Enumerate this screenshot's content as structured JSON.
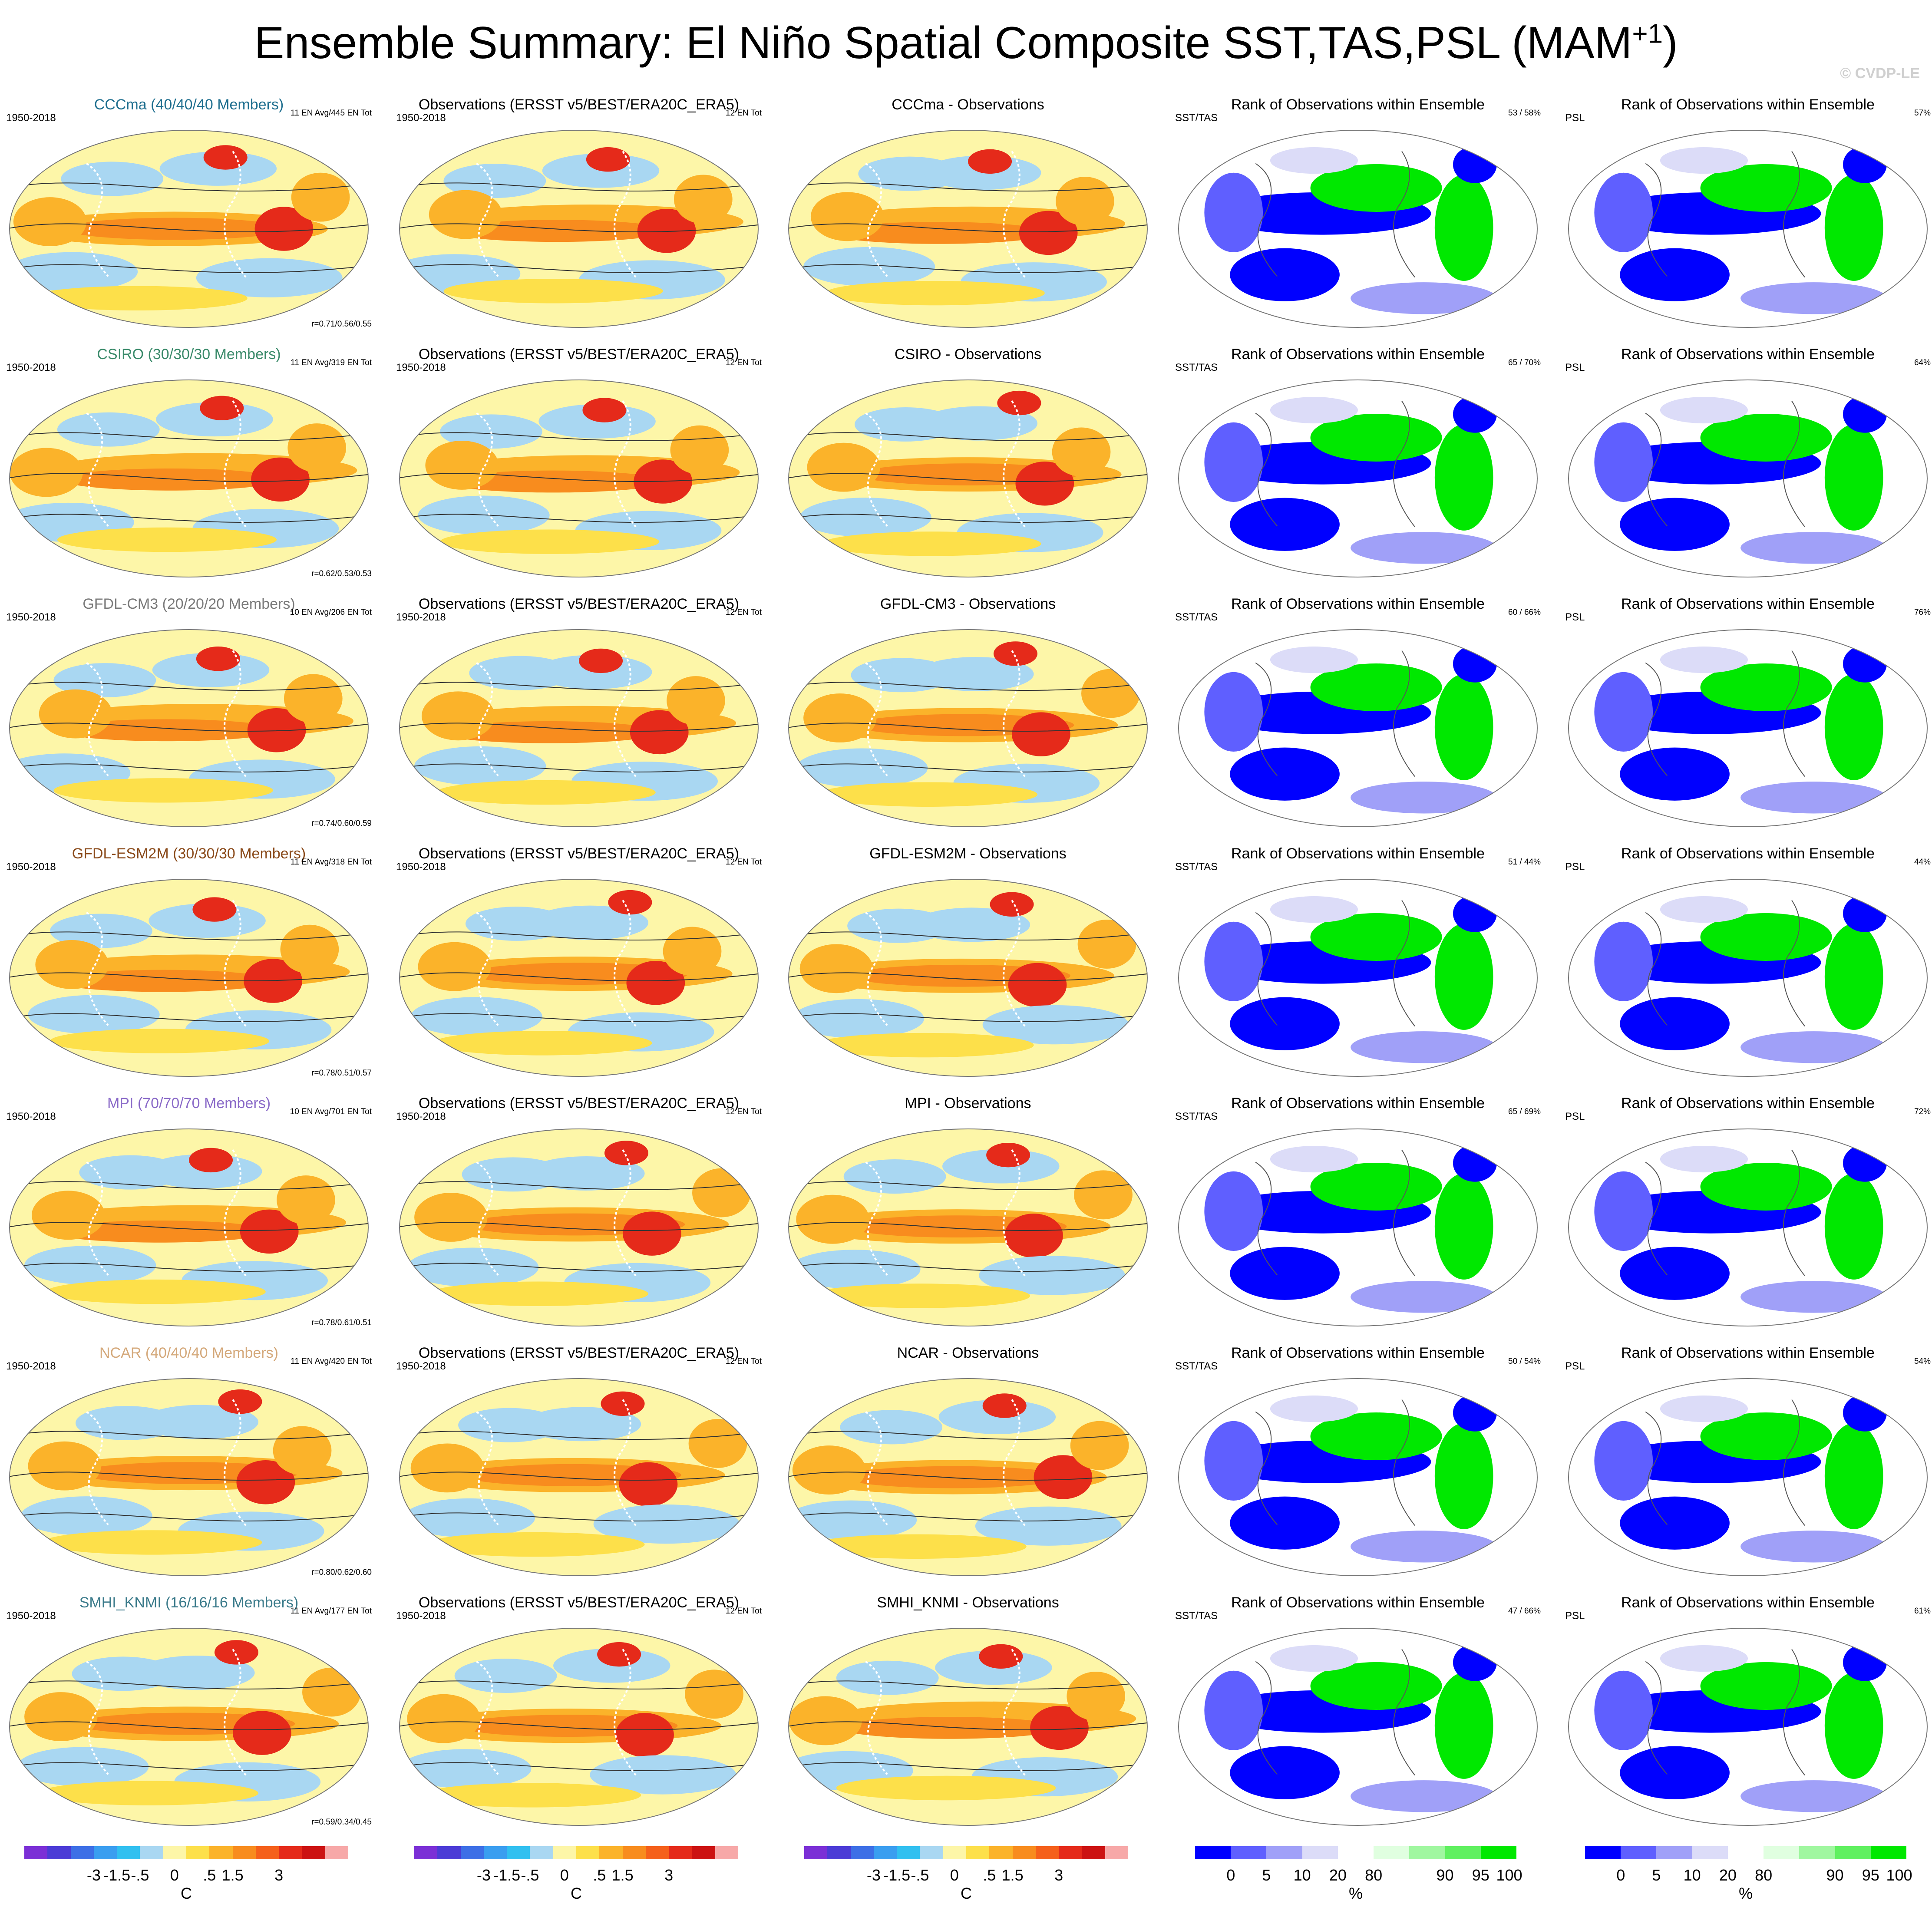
{
  "title": "Ensemble Summary: El Niño Spatial Composite SST,TAS,PSL (MAM",
  "title_superscript": "+1",
  "watermark": "© CVDP-LE",
  "colors": {
    "model_titles": [
      "#1f6f8f",
      "#3a8a6a",
      "#7a7a7a",
      "#8a4a1a",
      "#8a6ac8",
      "#d4a87a",
      "#3a7a8a"
    ],
    "temp_scale": [
      "#7b2fd6",
      "#4b3bd6",
      "#3d6fe6",
      "#3a9ef0",
      "#31c0f0",
      "#a9d7f2",
      "#fdf6a8",
      "#fde04a",
      "#fbb32a",
      "#f88c1e",
      "#f5601b",
      "#e52a1a",
      "#cc1212",
      "#f7a8a8"
    ],
    "rank_scale": [
      "#0000ff",
      "#5f5fff",
      "#a0a0f8",
      "#dcdcf8",
      "#ffffff",
      "#e0ffe0",
      "#a0f7a0",
      "#60f060",
      "#00e800"
    ]
  },
  "rows": [
    {
      "model_title": "CCCma (40/40/40 Members)",
      "years": "1950-2018",
      "model_extra": "11 EN Avg/445 EN Tot",
      "corr": "r=0.71/0.56/0.55",
      "obs_title": "Observations (ERSST v5/BEST/ERA20C_ERA5)",
      "obs_years": "1950-2018",
      "obs_extra": "12 EN Tot",
      "diff_title": "CCCma - Observations",
      "rank_title": "Rank of Observations within Ensemble",
      "rank_label_sst": "SST/TAS",
      "rank_pct_sst": "53 /  58%",
      "rank_label_psl": "PSL",
      "rank_pct_psl": "57%"
    },
    {
      "model_title": "CSIRO (30/30/30 Members)",
      "years": "1950-2018",
      "model_extra": "11 EN Avg/319 EN Tot",
      "corr": "r=0.62/0.53/0.53",
      "obs_title": "Observations (ERSST v5/BEST/ERA20C_ERA5)",
      "obs_years": "1950-2018",
      "obs_extra": "12 EN Tot",
      "diff_title": "CSIRO - Observations",
      "rank_title": "Rank of Observations within Ensemble",
      "rank_label_sst": "SST/TAS",
      "rank_pct_sst": "65 /  70%",
      "rank_label_psl": "PSL",
      "rank_pct_psl": "64%"
    },
    {
      "model_title": "GFDL-CM3 (20/20/20 Members)",
      "years": "1950-2018",
      "model_extra": "10 EN Avg/206 EN Tot",
      "corr": "r=0.74/0.60/0.59",
      "obs_title": "Observations (ERSST v5/BEST/ERA20C_ERA5)",
      "obs_years": "1950-2018",
      "obs_extra": "12 EN Tot",
      "diff_title": "GFDL-CM3 - Observations",
      "rank_title": "Rank of Observations within Ensemble",
      "rank_label_sst": "SST/TAS",
      "rank_pct_sst": "60 /  66%",
      "rank_label_psl": "PSL",
      "rank_pct_psl": "76%"
    },
    {
      "model_title": "GFDL-ESM2M (30/30/30 Members)",
      "years": "1950-2018",
      "model_extra": "11 EN Avg/318 EN Tot",
      "corr": "r=0.78/0.51/0.57",
      "obs_title": "Observations (ERSST v5/BEST/ERA20C_ERA5)",
      "obs_years": "1950-2018",
      "obs_extra": "12 EN Tot",
      "diff_title": "GFDL-ESM2M - Observations",
      "rank_title": "Rank of Observations within Ensemble",
      "rank_label_sst": "SST/TAS",
      "rank_pct_sst": "51 /  44%",
      "rank_label_psl": "PSL",
      "rank_pct_psl": "44%"
    },
    {
      "model_title": "MPI (70/70/70 Members)",
      "years": "1950-2018",
      "model_extra": "10 EN Avg/701 EN Tot",
      "corr": "r=0.78/0.61/0.51",
      "obs_title": "Observations (ERSST v5/BEST/ERA20C_ERA5)",
      "obs_years": "1950-2018",
      "obs_extra": "12 EN Tot",
      "diff_title": "MPI - Observations",
      "rank_title": "Rank of Observations within Ensemble",
      "rank_label_sst": "SST/TAS",
      "rank_pct_sst": "65 /  69%",
      "rank_label_psl": "PSL",
      "rank_pct_psl": "72%"
    },
    {
      "model_title": "NCAR (40/40/40 Members)",
      "years": "1950-2018",
      "model_extra": "11 EN Avg/420 EN Tot",
      "corr": "r=0.80/0.62/0.60",
      "obs_title": "Observations (ERSST v5/BEST/ERA20C_ERA5)",
      "obs_years": "1950-2018",
      "obs_extra": "12 EN Tot",
      "diff_title": "NCAR - Observations",
      "rank_title": "Rank of Observations within Ensemble",
      "rank_label_sst": "SST/TAS",
      "rank_pct_sst": "50 /  54%",
      "rank_label_psl": "PSL",
      "rank_pct_psl": "54%"
    },
    {
      "model_title": "SMHI_KNMI (16/16/16 Members)",
      "years": "1950-2018",
      "model_extra": "11 EN Avg/177 EN Tot",
      "corr": "r=0.59/0.34/0.45",
      "obs_title": "Observations (ERSST v5/BEST/ERA20C_ERA5)",
      "obs_years": "1950-2018",
      "obs_extra": "12 EN Tot",
      "diff_title": "SMHI_KNMI - Observations",
      "rank_title": "Rank of Observations within Ensemble",
      "rank_label_sst": "SST/TAS",
      "rank_pct_sst": "47 /  66%",
      "rank_label_psl": "PSL",
      "rank_pct_psl": "61%"
    }
  ],
  "temp_colorbar": {
    "ticks": [
      "-3",
      "-1.5",
      "-.5",
      "0",
      ".5",
      "1.5",
      "3"
    ],
    "unit": "C"
  },
  "rank_colorbar": {
    "ticks": [
      "0",
      "5",
      "10",
      "20",
      "80",
      "90",
      "95",
      "100"
    ],
    "unit": "%"
  }
}
